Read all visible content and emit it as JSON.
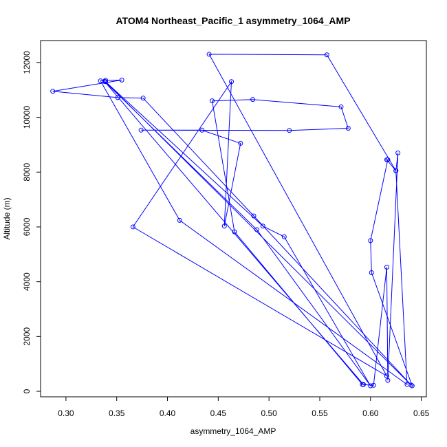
{
  "chart_data": {
    "type": "line",
    "title": "ATOM4 Northeast_Pacific_1 asymmetry_1064_AMP",
    "xlabel": "asymmetry_1064_AMP",
    "ylabel": "Altitude (m)",
    "xlim": [
      0.275,
      0.655
    ],
    "ylim": [
      -200,
      12800
    ],
    "xticks": [
      0.3,
      0.35,
      0.4,
      0.45,
      0.5,
      0.55,
      0.6,
      0.65
    ],
    "xtick_labels": [
      "0.30",
      "0.35",
      "0.40",
      "0.45",
      "0.50",
      "0.55",
      "0.60",
      "0.65"
    ],
    "yticks": [
      0,
      2000,
      4000,
      6000,
      8000,
      10000,
      12000
    ],
    "ytick_labels": [
      "0",
      "2000",
      "4000",
      "6000",
      "8000",
      "10000",
      "12000"
    ],
    "grid": false,
    "color": "#0000ff",
    "series": [
      {
        "x": [
          0.641,
          0.601,
          0.6,
          0.617,
          0.616,
          0.625,
          0.627,
          0.617,
          0.616,
          0.603,
          0.592,
          0.466,
          0.444,
          0.484,
          0.571,
          0.578,
          0.52,
          0.374,
          0.434,
          0.472,
          0.456,
          0.463,
          0.366,
          0.616,
          0.441,
          0.557,
          0.625,
          0.636,
          0.412,
          0.334,
          0.339,
          0.355,
          0.287,
          0.351,
          0.376,
          0.485,
          0.64,
          0.339,
          0.494,
          0.515,
          0.6,
          0.488,
          0.338,
          0.593
        ],
        "y": [
          200,
          4330,
          5500,
          8450,
          8450,
          8050,
          8700,
          400,
          4530,
          220,
          250,
          5820,
          10600,
          10650,
          10380,
          9600,
          9520,
          9530,
          9530,
          9050,
          6030,
          11300,
          6000,
          560,
          12300,
          12280,
          8050,
          250,
          6240,
          11330,
          11350,
          11360,
          10950,
          10720,
          10700,
          6400,
          230,
          11300,
          6030,
          5640,
          200,
          5900,
          11310,
          250
        ]
      }
    ]
  }
}
